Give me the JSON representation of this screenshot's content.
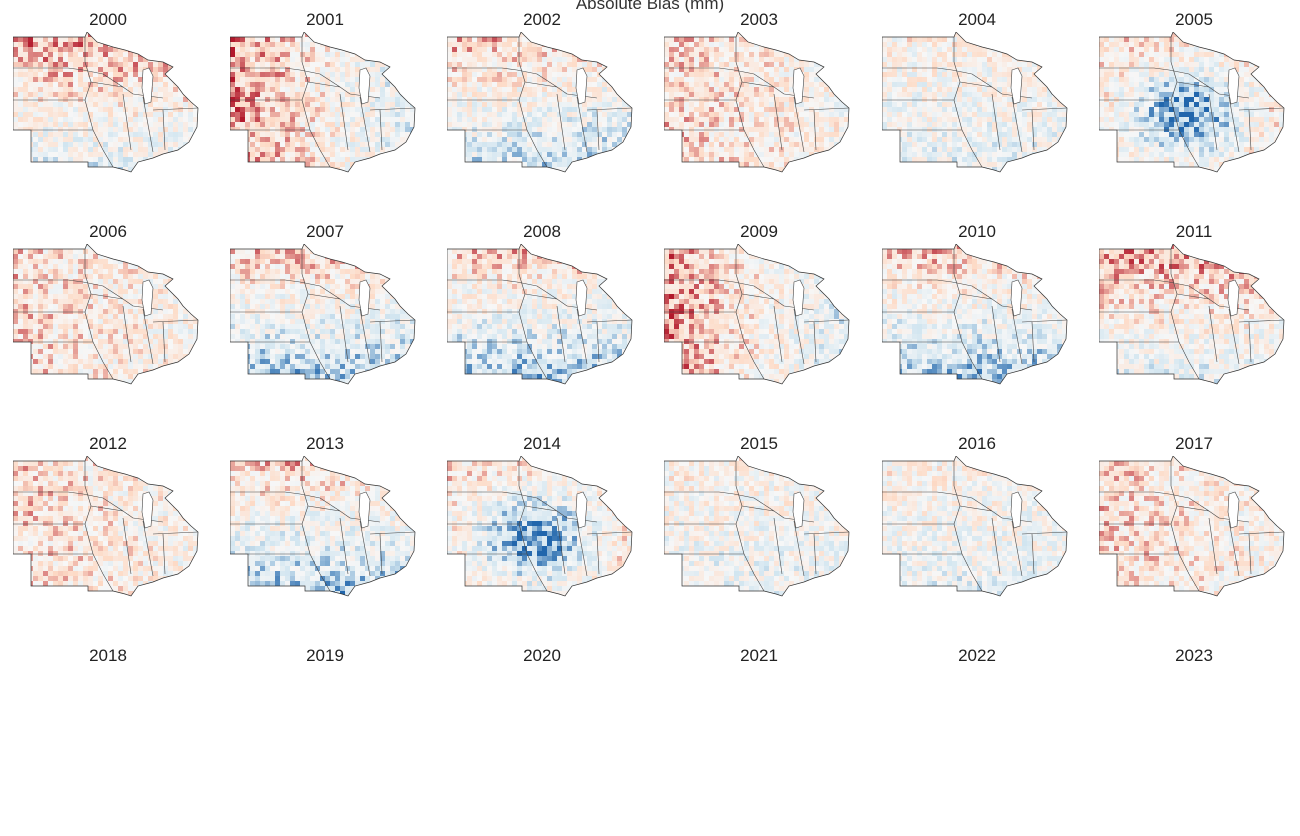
{
  "figure": {
    "title": "Absolute Bias (mm)",
    "colormap": {
      "negative_dark": "#2166ac",
      "negative_light": "#d1e5f0",
      "neutral": "#f7f7f7",
      "positive_light": "#fddbc7",
      "positive_dark": "#b2182b"
    }
  },
  "panels": [
    {
      "year": "2000",
      "pattern": "warm-north"
    },
    {
      "year": "2001",
      "pattern": "warm-west"
    },
    {
      "year": "2002",
      "pattern": "mixed-cool-south"
    },
    {
      "year": "2003",
      "pattern": "warm-mixed"
    },
    {
      "year": "2004",
      "pattern": "mixed"
    },
    {
      "year": "2005",
      "pattern": "cool-center"
    },
    {
      "year": "2006",
      "pattern": "warm-mixed"
    },
    {
      "year": "2007",
      "pattern": "cool-south"
    },
    {
      "year": "2008",
      "pattern": "cool-south"
    },
    {
      "year": "2009",
      "pattern": "warm-west"
    },
    {
      "year": "2010",
      "pattern": "cool-south"
    },
    {
      "year": "2011",
      "pattern": "warm-north"
    },
    {
      "year": "2012",
      "pattern": "warm-mixed"
    },
    {
      "year": "2013",
      "pattern": "cool-south"
    },
    {
      "year": "2014",
      "pattern": "cool-center"
    },
    {
      "year": "2015",
      "pattern": "mixed"
    },
    {
      "year": "2016",
      "pattern": "mixed"
    },
    {
      "year": "2017",
      "pattern": "warm-mixed"
    },
    {
      "year": "2018",
      "pattern": "mixed"
    },
    {
      "year": "2019",
      "pattern": "mixed"
    },
    {
      "year": "2020",
      "pattern": "mixed"
    },
    {
      "year": "2021",
      "pattern": "mixed"
    },
    {
      "year": "2022",
      "pattern": "mixed"
    },
    {
      "year": "2023",
      "pattern": "mixed"
    }
  ]
}
